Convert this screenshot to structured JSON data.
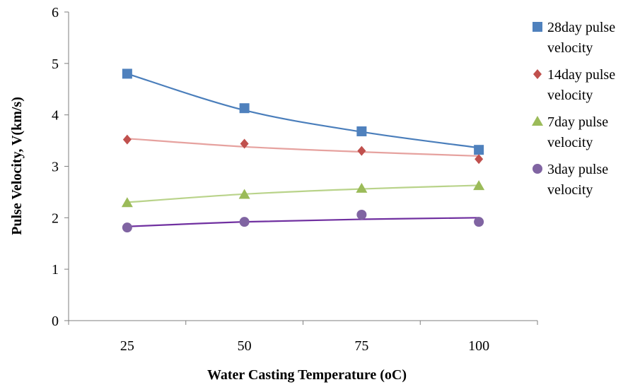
{
  "chart_data": {
    "type": "scatter",
    "title": "",
    "xlabel": "Water Casting Temperature (oC)",
    "ylabel": "Pulse Velocity, V(km/s)",
    "x": [
      25,
      50,
      75,
      100
    ],
    "x_tick_labels": [
      "25",
      "50",
      "75",
      "100"
    ],
    "y_tick_labels": [
      "0",
      "1",
      "2",
      "3",
      "4",
      "5",
      "6"
    ],
    "ylim": [
      0,
      6
    ],
    "grid": false,
    "legend_position": "right",
    "series": [
      {
        "name": "28day pulse velocity",
        "legend_lines": [
          "28day pulse",
          "velocity"
        ],
        "values": [
          4.8,
          4.13,
          3.68,
          3.32
        ],
        "trend": [
          4.8,
          4.09,
          3.67,
          3.36
        ],
        "color": "#4f81bd",
        "marker": "square",
        "line_color": "#4a7ebb"
      },
      {
        "name": "14day pulse velocity",
        "legend_lines": [
          "14day pulse",
          "velocity"
        ],
        "values": [
          3.52,
          3.44,
          3.3,
          3.14
        ],
        "trend": [
          3.54,
          3.38,
          3.28,
          3.2
        ],
        "color": "#c0504d",
        "marker": "diamond",
        "line_color": "#e6a29f"
      },
      {
        "name": "7day pulse velocity",
        "legend_lines": [
          "7day pulse",
          "velocity"
        ],
        "values": [
          2.29,
          2.45,
          2.57,
          2.62
        ],
        "trend": [
          2.3,
          2.46,
          2.56,
          2.63
        ],
        "color": "#9bbb59",
        "marker": "triangle",
        "line_color": "#b9d38a"
      },
      {
        "name": "3day pulse velocity",
        "legend_lines": [
          "3day pulse",
          "velocity"
        ],
        "values": [
          1.81,
          1.92,
          2.06,
          1.92
        ],
        "trend": [
          1.83,
          1.92,
          1.97,
          2.0
        ],
        "color": "#8064a2",
        "marker": "circle",
        "line_color": "#7030a0"
      }
    ]
  }
}
